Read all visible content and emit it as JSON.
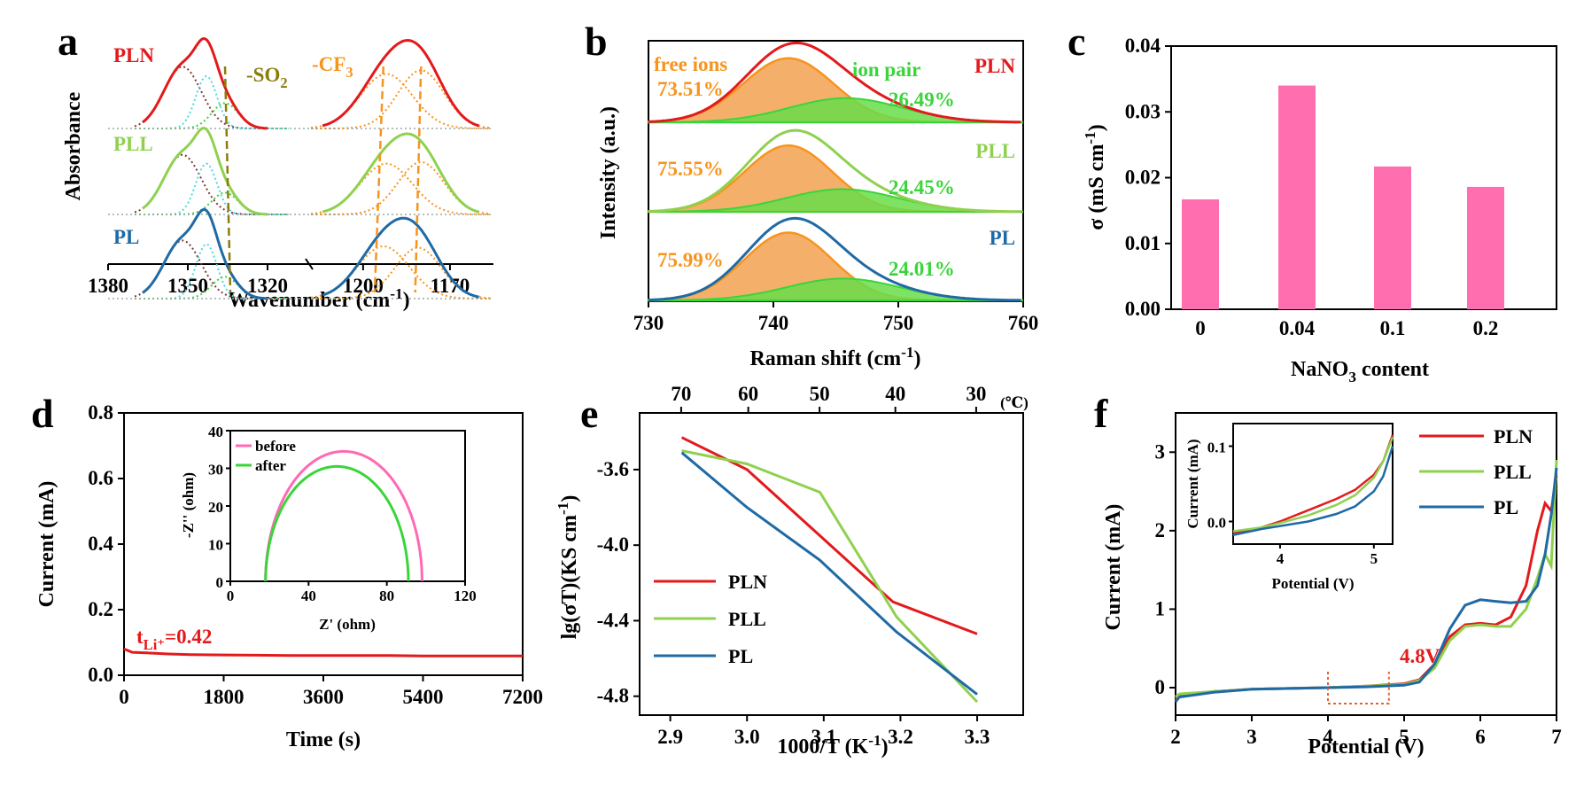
{
  "colors": {
    "PLN": "#e31a1c",
    "PLL": "#8fd14f",
    "PL": "#1f6aa5",
    "orange": "#f7941d",
    "green": "#3ad53a",
    "olive": "#8a7d0a",
    "pink": "#ff69b4",
    "cyan": "#4fd8e0",
    "inner": "#7a3b3b"
  },
  "chart_data": [
    {
      "id": "a",
      "panel_label": "a",
      "type": "line",
      "ylabel": "Absorbance",
      "xlabel": "Wavenumber (cm⁻¹)",
      "xticks_left": [
        "1380",
        "1350",
        "1320"
      ],
      "xticks_right": [
        "1200",
        "1170"
      ],
      "xlim_left": [
        1380,
        1305
      ],
      "xlim_right": [
        1218,
        1155
      ],
      "series_labels": [
        "PLN",
        "PLL",
        "PL"
      ],
      "annotations": {
        "so2": "-SO",
        "so2_sub": "2",
        "cf3": "-CF",
        "cf3_sub": "3"
      },
      "peaks": {
        "PLN": {
          "so2": [
            [
              1352,
              0.85,
              7
            ],
            [
              1343,
              0.72,
              4
            ],
            [
              1336,
              0.35,
              5
            ]
          ],
          "cf3": [
            [
              1192,
              0.75,
              9
            ],
            [
              1180,
              0.8,
              8
            ]
          ]
        },
        "PLL": {
          "so2": [
            [
              1352,
              0.82,
              7
            ],
            [
              1343,
              0.7,
              4
            ],
            [
              1336,
              0.3,
              5
            ]
          ],
          "cf3": [
            [
              1192,
              0.7,
              9
            ],
            [
              1180,
              0.72,
              8
            ]
          ]
        },
        "PL": {
          "so2": [
            [
              1352,
              0.8,
              7
            ],
            [
              1343,
              0.75,
              4
            ],
            [
              1336,
              0.3,
              5
            ]
          ],
          "cf3": [
            [
              1193,
              0.72,
              9
            ],
            [
              1181,
              0.7,
              8
            ]
          ]
        }
      }
    },
    {
      "id": "b",
      "panel_label": "b",
      "type": "area",
      "ylabel": "Intensity (a.u.)",
      "xlabel": "Raman shift (cm⁻¹)",
      "xticks": [
        730,
        740,
        750,
        760
      ],
      "xlim": [
        730,
        760
      ],
      "free_ions_label": "free ions",
      "ion_pair_label": "ion pair",
      "series": [
        {
          "name": "PLN",
          "free_pct": "73.51%",
          "pair_pct": "26.49%",
          "free": [
            741.2,
            0.85,
            3.6
          ],
          "pair": [
            745.8,
            0.32,
            4.5
          ]
        },
        {
          "name": "PLL",
          "free_pct": "75.55%",
          "pair_pct": "24.45%",
          "free": [
            741.2,
            0.88,
            3.5
          ],
          "pair": [
            745.5,
            0.3,
            4.5
          ]
        },
        {
          "name": "PL",
          "free_pct": "75.99%",
          "pair_pct": "24.01%",
          "free": [
            741.2,
            0.9,
            3.5
          ],
          "pair": [
            745.6,
            0.29,
            4.5
          ]
        }
      ]
    },
    {
      "id": "c",
      "panel_label": "c",
      "type": "bar",
      "ylabel": "σ (mS cm⁻¹)",
      "xlabel": "NaNO",
      "xlabel_sub": "3",
      "xlabel_tail": " content",
      "categories": [
        "0",
        "0.04",
        "0.1",
        "0.2"
      ],
      "values": [
        0.0167,
        0.034,
        0.0217,
        0.0186
      ],
      "ylim": [
        0,
        0.04
      ],
      "yticks": [
        "0.00",
        "0.01",
        "0.02",
        "0.03",
        "0.04"
      ],
      "color": "#ff6fb0"
    },
    {
      "id": "d",
      "panel_label": "d",
      "type": "line",
      "ylabel": "Current (mA)",
      "xlabel": "Time (s)",
      "xticks": [
        0,
        1800,
        3600,
        5400,
        7200
      ],
      "yticks": [
        "0.0",
        "0.2",
        "0.4",
        "0.6",
        "0.8"
      ],
      "xlim": [
        0,
        7200
      ],
      "ylim": [
        0,
        0.8
      ],
      "series": [
        {
          "name": "current",
          "x": [
            0,
            150,
            400,
            800,
            1200,
            1800,
            2400,
            3000,
            3600,
            4200,
            4800,
            5400,
            6000,
            6600,
            7200
          ],
          "y": [
            0.08,
            0.07,
            0.068,
            0.065,
            0.063,
            0.062,
            0.061,
            0.06,
            0.06,
            0.06,
            0.06,
            0.059,
            0.059,
            0.059,
            0.059
          ]
        }
      ],
      "annotation_t": "t",
      "annotation_sub": "Li⁺",
      "annotation_val": "=0.42",
      "inset": {
        "xlabel": "Z' (ohm)",
        "ylabel": "-Z'' (ohm)",
        "xticks": [
          0,
          40,
          80,
          120
        ],
        "yticks": [
          0,
          10,
          20,
          30,
          40
        ],
        "xlim": [
          0,
          120
        ],
        "ylim": [
          0,
          40
        ],
        "series": [
          {
            "name": "before",
            "center": 58,
            "radius": 40,
            "height": 34.5
          },
          {
            "name": "after",
            "center": 54.5,
            "radius": 36.5,
            "height": 30.5
          }
        ]
      }
    },
    {
      "id": "e",
      "panel_label": "e",
      "type": "line",
      "ylabel": "lg(σT)(KS cm⁻¹)",
      "xlabel": "1000/T (K⁻¹)",
      "xticks": [
        "2.9",
        "3.0",
        "3.1",
        "3.2",
        "3.3"
      ],
      "xlim": [
        2.86,
        3.36
      ],
      "yticks": [
        "-3.6",
        "-4.0",
        "-4.4",
        "-4.8"
      ],
      "ylim": [
        -4.9,
        -3.3
      ],
      "top_ticks": [
        "70",
        "60",
        "50",
        "40",
        "30"
      ],
      "top_unit": "(℃)",
      "series": [
        {
          "name": "PLN",
          "x": [
            2.915,
            3.0,
            3.095,
            3.19,
            3.3
          ],
          "y": [
            -3.43,
            -3.6,
            -3.95,
            -4.3,
            -4.47
          ]
        },
        {
          "name": "PLL",
          "x": [
            2.915,
            3.0,
            3.095,
            3.195,
            3.3
          ],
          "y": [
            -3.5,
            -3.57,
            -3.72,
            -4.38,
            -4.83
          ]
        },
        {
          "name": "PL",
          "x": [
            2.915,
            3.0,
            3.095,
            3.195,
            3.3
          ],
          "y": [
            -3.51,
            -3.8,
            -4.08,
            -4.46,
            -4.79
          ]
        }
      ]
    },
    {
      "id": "f",
      "panel_label": "f",
      "type": "line",
      "ylabel": "Current (mA)",
      "xlabel": "Potential (V)",
      "xticks": [
        2,
        3,
        4,
        5,
        6,
        7
      ],
      "yticks": [
        0,
        1,
        2,
        3
      ],
      "xlim": [
        2,
        7
      ],
      "ylim": [
        -0.35,
        3.5
      ],
      "annotation": "4.8V",
      "series": [
        {
          "name": "PLN",
          "x": [
            2,
            2.05,
            2.5,
            3,
            3.5,
            4,
            4.5,
            5,
            5.2,
            5.4,
            5.6,
            5.8,
            6.0,
            6.2,
            6.4,
            6.6,
            6.75,
            6.85,
            6.93,
            7.0
          ],
          "y": [
            -0.15,
            -0.1,
            -0.05,
            -0.02,
            -0.01,
            0.0,
            0.02,
            0.05,
            0.1,
            0.3,
            0.65,
            0.8,
            0.82,
            0.8,
            0.9,
            1.3,
            2.0,
            2.35,
            2.25,
            2.7
          ]
        },
        {
          "name": "PLL",
          "x": [
            2,
            2.05,
            2.5,
            3,
            3.5,
            4,
            4.5,
            5,
            5.2,
            5.4,
            5.6,
            5.8,
            6.0,
            6.2,
            6.4,
            6.6,
            6.75,
            6.85,
            6.93,
            7.0
          ],
          "y": [
            -0.12,
            -0.08,
            -0.05,
            -0.02,
            -0.01,
            0.0,
            0.02,
            0.04,
            0.09,
            0.25,
            0.6,
            0.78,
            0.8,
            0.78,
            0.78,
            1.0,
            1.4,
            1.7,
            1.55,
            2.9
          ]
        },
        {
          "name": "PL",
          "x": [
            2,
            2.05,
            2.5,
            3,
            3.5,
            4,
            4.5,
            5,
            5.2,
            5.4,
            5.6,
            5.8,
            6.0,
            6.2,
            6.4,
            6.6,
            6.75,
            6.85,
            6.93,
            7.0
          ],
          "y": [
            -0.18,
            -0.12,
            -0.06,
            -0.02,
            -0.01,
            0.0,
            0.01,
            0.03,
            0.07,
            0.3,
            0.75,
            1.05,
            1.12,
            1.1,
            1.08,
            1.1,
            1.3,
            1.7,
            2.2,
            2.8
          ]
        }
      ],
      "inset": {
        "xlabel": "Potential (V)",
        "ylabel": "Current (mA)",
        "xticks": [
          4,
          5
        ],
        "yticks": [
          "0.0",
          "0.1"
        ],
        "xlim": [
          3.5,
          5.2
        ],
        "ylim": [
          -0.03,
          0.13
        ],
        "series": [
          {
            "name": "PLN",
            "x": [
              3.5,
              3.8,
              4.0,
              4.3,
              4.6,
              4.8,
              5.0,
              5.1,
              5.2
            ],
            "y": [
              -0.015,
              -0.008,
              0.0,
              0.015,
              0.03,
              0.042,
              0.062,
              0.08,
              0.115
            ]
          },
          {
            "name": "PLL",
            "x": [
              3.5,
              3.8,
              4.0,
              4.3,
              4.6,
              4.8,
              5.0,
              5.1,
              5.2
            ],
            "y": [
              -0.013,
              -0.008,
              -0.002,
              0.008,
              0.022,
              0.035,
              0.058,
              0.08,
              0.112
            ]
          },
          {
            "name": "PL",
            "x": [
              3.5,
              3.8,
              4.0,
              4.3,
              4.6,
              4.8,
              5.0,
              5.1,
              5.2
            ],
            "y": [
              -0.018,
              -0.01,
              -0.006,
              0.0,
              0.01,
              0.02,
              0.04,
              0.06,
              0.1
            ]
          }
        ]
      }
    }
  ]
}
